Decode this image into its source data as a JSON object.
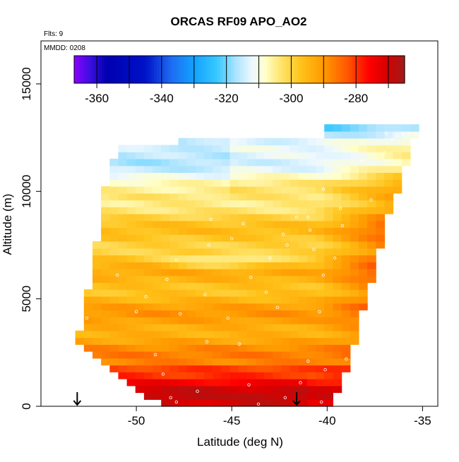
{
  "chart_data": {
    "type": "heatmap",
    "title": "ORCAS RF09 APO_AO2",
    "top_left_label": "Flts: 9",
    "inset_label": "MMDD: 0208",
    "xlabel": "Latitude (deg N)",
    "ylabel": "Altitude (m)",
    "xlim": [
      -55.0,
      -34.2
    ],
    "ylim": [
      0,
      17000
    ],
    "x_ticks": [
      -50,
      -45,
      -40,
      -35
    ],
    "x_tick_labels": [
      "-50",
      "-45",
      "-40",
      "-35"
    ],
    "y_ticks": [
      0,
      5000,
      10000,
      15000
    ],
    "y_tick_labels": [
      "0",
      "5000",
      "10000",
      "15000"
    ],
    "colorbar": {
      "range": [
        -367,
        -265
      ],
      "ticks": [
        -360,
        -340,
        -320,
        -300,
        -280
      ],
      "tick_labels": [
        "-360",
        "-340",
        "-320",
        "-300",
        "-280"
      ],
      "division_values": [
        -360,
        -350,
        -340,
        -330,
        -320,
        -310,
        -300,
        -290,
        -280,
        -270
      ],
      "stops": [
        {
          "v": -367,
          "color": "#8b00ff"
        },
        {
          "v": -362,
          "color": "#3a0fe0"
        },
        {
          "v": -357,
          "color": "#0000b0"
        },
        {
          "v": -345,
          "color": "#0012c8"
        },
        {
          "v": -337,
          "color": "#1e6cf2"
        },
        {
          "v": -330,
          "color": "#13a2ff"
        },
        {
          "v": -323,
          "color": "#36c8ff"
        },
        {
          "v": -317,
          "color": "#aee4ff"
        },
        {
          "v": -312,
          "color": "#eef8ff"
        },
        {
          "v": -308,
          "color": "#ffffc8"
        },
        {
          "v": -303,
          "color": "#ffe36a"
        },
        {
          "v": -297,
          "color": "#ffc31a"
        },
        {
          "v": -290,
          "color": "#ff9a00"
        },
        {
          "v": -283,
          "color": "#ff5a00"
        },
        {
          "v": -276,
          "color": "#ff0000"
        },
        {
          "v": -271,
          "color": "#d80000"
        },
        {
          "v": -265,
          "color": "#a01a1a"
        }
      ]
    },
    "field": {
      "region_rows": [
        {
          "alt": 100,
          "lat_min": -48.8,
          "lat_max": -39.7
        },
        {
          "alt": 1000,
          "lat_min": -50.5,
          "lat_max": -39.3
        },
        {
          "alt": 2000,
          "lat_min": -51.8,
          "lat_max": -38.9
        },
        {
          "alt": 3100,
          "lat_min": -53.1,
          "lat_max": -38.5
        },
        {
          "alt": 4500,
          "lat_min": -52.7,
          "lat_max": -38.1
        },
        {
          "alt": 6000,
          "lat_min": -52.4,
          "lat_max": -37.6
        },
        {
          "alt": 7500,
          "lat_min": -52.1,
          "lat_max": -37.2
        },
        {
          "alt": 9000,
          "lat_min": -51.8,
          "lat_max": -36.8
        },
        {
          "alt": 10300,
          "lat_min": -51.6,
          "lat_max": -36.2
        },
        {
          "alt": 11500,
          "lat_min": -51.2,
          "lat_max": -35.8
        },
        {
          "alt": 12200,
          "lat_min": -51.0,
          "lat_max": -35.6
        },
        {
          "alt": 12600,
          "lat_min": -40.0,
          "lat_max": -35.1
        }
      ]
    },
    "sample_points": [
      {
        "x": -47.9,
        "y": 200
      },
      {
        "x": -48.2,
        "y": 400
      },
      {
        "x": -46.8,
        "y": 700
      },
      {
        "x": -43.6,
        "y": 100
      },
      {
        "x": -42.2,
        "y": 400
      },
      {
        "x": -40.3,
        "y": 200
      },
      {
        "x": -41.4,
        "y": 1100
      },
      {
        "x": -40.1,
        "y": 1700
      },
      {
        "x": -44.1,
        "y": 1000
      },
      {
        "x": -48.6,
        "y": 1500
      },
      {
        "x": -49.0,
        "y": 2400
      },
      {
        "x": -46.3,
        "y": 3000
      },
      {
        "x": -44.6,
        "y": 2900
      },
      {
        "x": -41.0,
        "y": 2100
      },
      {
        "x": -39.0,
        "y": 2200
      },
      {
        "x": -52.6,
        "y": 4100
      },
      {
        "x": -50.0,
        "y": 4400
      },
      {
        "x": -47.7,
        "y": 4300
      },
      {
        "x": -45.2,
        "y": 4100
      },
      {
        "x": -42.6,
        "y": 4600
      },
      {
        "x": -40.4,
        "y": 4400
      },
      {
        "x": -49.5,
        "y": 5100
      },
      {
        "x": -46.4,
        "y": 5200
      },
      {
        "x": -43.2,
        "y": 5300
      },
      {
        "x": -51.0,
        "y": 6100
      },
      {
        "x": -48.4,
        "y": 5900
      },
      {
        "x": -44.0,
        "y": 6000
      },
      {
        "x": -40.2,
        "y": 6100
      },
      {
        "x": -47.9,
        "y": 6800
      },
      {
        "x": -43.0,
        "y": 6900
      },
      {
        "x": -39.6,
        "y": 6900
      },
      {
        "x": -46.2,
        "y": 7500
      },
      {
        "x": -42.1,
        "y": 7500
      },
      {
        "x": -40.7,
        "y": 7300
      },
      {
        "x": -45.0,
        "y": 7800
      },
      {
        "x": -42.3,
        "y": 8000
      },
      {
        "x": -40.9,
        "y": 8200
      },
      {
        "x": -46.1,
        "y": 8700
      },
      {
        "x": -44.4,
        "y": 8500
      },
      {
        "x": -41.6,
        "y": 8800
      },
      {
        "x": -41.0,
        "y": 8800
      },
      {
        "x": -39.2,
        "y": 8400
      },
      {
        "x": -37.7,
        "y": 9600
      },
      {
        "x": -40.2,
        "y": 10100
      },
      {
        "x": -39.3,
        "y": 9200
      },
      {
        "x": -51.2,
        "y": 12200
      },
      {
        "x": -38.2,
        "y": 11400
      },
      {
        "x": -37.0,
        "y": 11800
      },
      {
        "x": -36.6,
        "y": 12400
      },
      {
        "x": -36.3,
        "y": 12600
      },
      {
        "x": -36.0,
        "y": 12650
      },
      {
        "x": -35.7,
        "y": 12650
      },
      {
        "x": -35.4,
        "y": 12650
      },
      {
        "x": -35.2,
        "y": 12650
      },
      {
        "x": -36.9,
        "y": 12700
      }
    ],
    "markers": [
      {
        "x": -53.1,
        "type": "down-arrow"
      },
      {
        "x": -41.6,
        "type": "down-arrow"
      }
    ]
  }
}
